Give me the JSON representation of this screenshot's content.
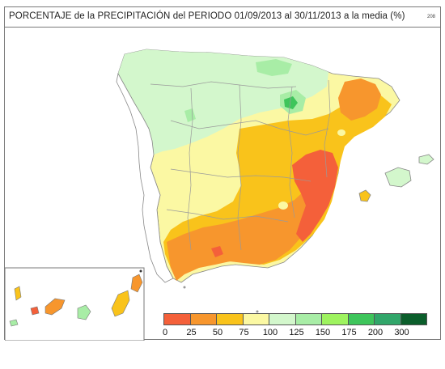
{
  "title": "PORCENTAJE de la PRECIPITACIÓN del PERIODO 01/09/2013 al 30/11/2013 a la media (%)",
  "map_code": "208",
  "legend": {
    "colors": [
      "#f4603a",
      "#f7962d",
      "#f9c31b",
      "#fbf8a3",
      "#d3f7cc",
      "#a8eda6",
      "#9ef35f",
      "#3ec55b",
      "#31a66a",
      "#0b5e2b"
    ],
    "labels": [
      "0",
      "25",
      "50",
      "75",
      "100",
      "125",
      "150",
      "175",
      "200",
      "300"
    ]
  }
}
